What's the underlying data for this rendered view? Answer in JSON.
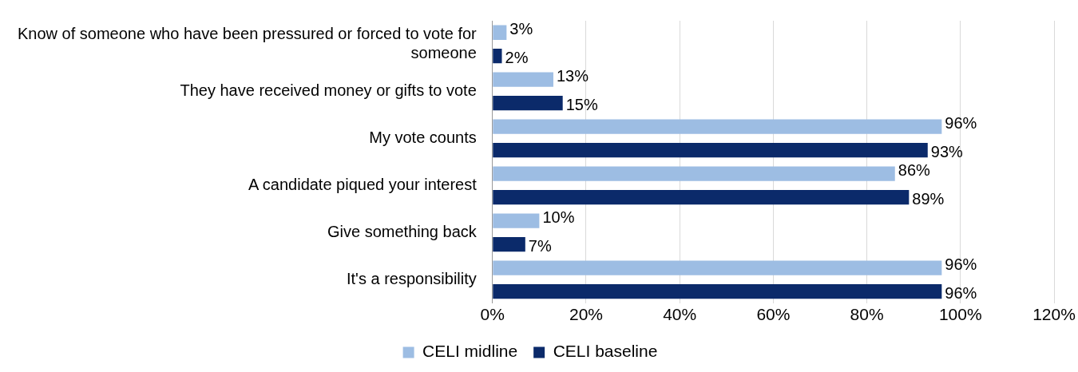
{
  "chart_data": {
    "type": "bar",
    "orientation": "horizontal",
    "categories": [
      "Know of someone who have been pressured or forced to vote for someone",
      "They have received money or gifts to vote",
      "My vote counts",
      "A candidate piqued your interest",
      "Give something back",
      "It's a responsibility"
    ],
    "series": [
      {
        "name": "CELI midline",
        "color": "#9dbde3",
        "values": [
          3,
          13,
          96,
          86,
          10,
          96
        ],
        "value_labels": [
          "3%",
          "13%",
          "96%",
          "86%",
          "10%",
          "96%"
        ]
      },
      {
        "name": "CELI baseline",
        "color": "#0b2a6a",
        "values": [
          2,
          15,
          93,
          89,
          7,
          96
        ],
        "value_labels": [
          "2%",
          "15%",
          "93%",
          "89%",
          "7%",
          "96%"
        ]
      }
    ],
    "xlim": [
      0,
      120
    ],
    "xticks": [
      {
        "value": 0,
        "label": "0%"
      },
      {
        "value": 20,
        "label": "20%"
      },
      {
        "value": 40,
        "label": "40%"
      },
      {
        "value": 60,
        "label": "60%"
      },
      {
        "value": 80,
        "label": "80%"
      },
      {
        "value": 100,
        "label": "100%"
      },
      {
        "value": 120,
        "label": "120%"
      }
    ],
    "grid": "x",
    "legend": "bottom"
  }
}
